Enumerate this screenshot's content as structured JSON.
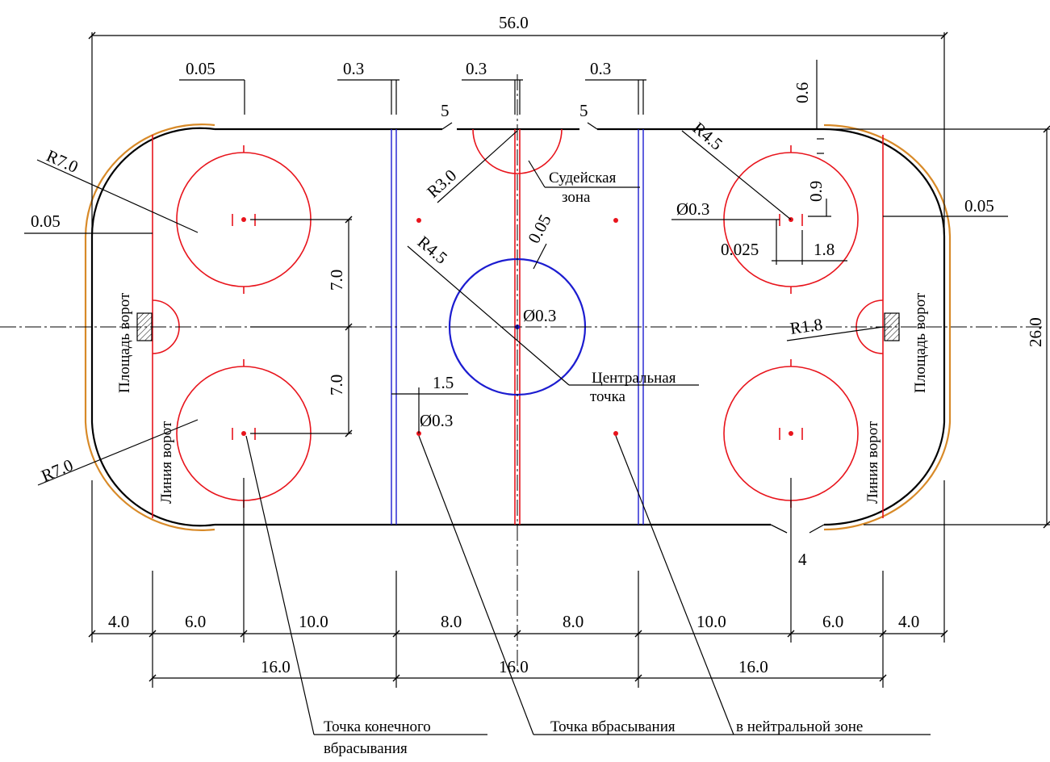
{
  "colors": {
    "line": "#000000",
    "red_markings": "#e8141c",
    "blue_markings": "#1c1cd0",
    "board": "#d88a28"
  },
  "dimensions": {
    "total_length": "56.0",
    "total_width": "26.0",
    "line_width_left": "0.05",
    "red_line_width": "0.3",
    "blue_line_left_width": "0.3",
    "blue_line_right_width": "0.3",
    "gap_left": "5",
    "gap_right": "5",
    "top_right_offset": "0.6",
    "corner_radius_top": "R7.0",
    "corner_radius_bottom": "R7.0",
    "goal_line_offset_left": "0.05",
    "goal_line_offset_right": "0.05",
    "referee_radius": "R3.0",
    "referee_zone_line1": "Судейская",
    "referee_zone_line2": "зона",
    "center_circle_line_width": "0.05",
    "center_circle_radius": "R4.5",
    "center_spot_diameter": "Ø0.3",
    "faceoff_circle_radius": "R4.5",
    "faceoff_spot_diameter": "Ø0.3",
    "hash_gap": "0.9",
    "hash_offset": "0.025",
    "hash_distance": "1.8",
    "crease_radius": "R1.8",
    "spot_offset_top": "7.0",
    "spot_offset_bottom": "7.0",
    "neutral_spot_offset": "1.5",
    "neutral_spot_diameter": "Ø0.3",
    "bottom_gap": "4",
    "bottom_row": [
      "4.0",
      "6.0",
      "10.0",
      "8.0",
      "8.0",
      "10.0",
      "6.0",
      "4.0"
    ],
    "zones_row": [
      "16.0",
      "16.0",
      "16.0"
    ]
  },
  "labels": {
    "goal_crease_left": "Площадь ворот",
    "goal_crease_right": "Площадь ворот",
    "goal_line_left": "Линия ворот",
    "goal_line_right": "Линия ворот",
    "center_point_line1": "Центральная",
    "center_point_line2": "точка",
    "end_faceoff_line1": "Точка конечного",
    "end_faceoff_line2": "вбрасывания",
    "neutral_faceoff_part1": "Точка вбрасывания",
    "neutral_faceoff_part2": "в нейтральной зоне"
  }
}
